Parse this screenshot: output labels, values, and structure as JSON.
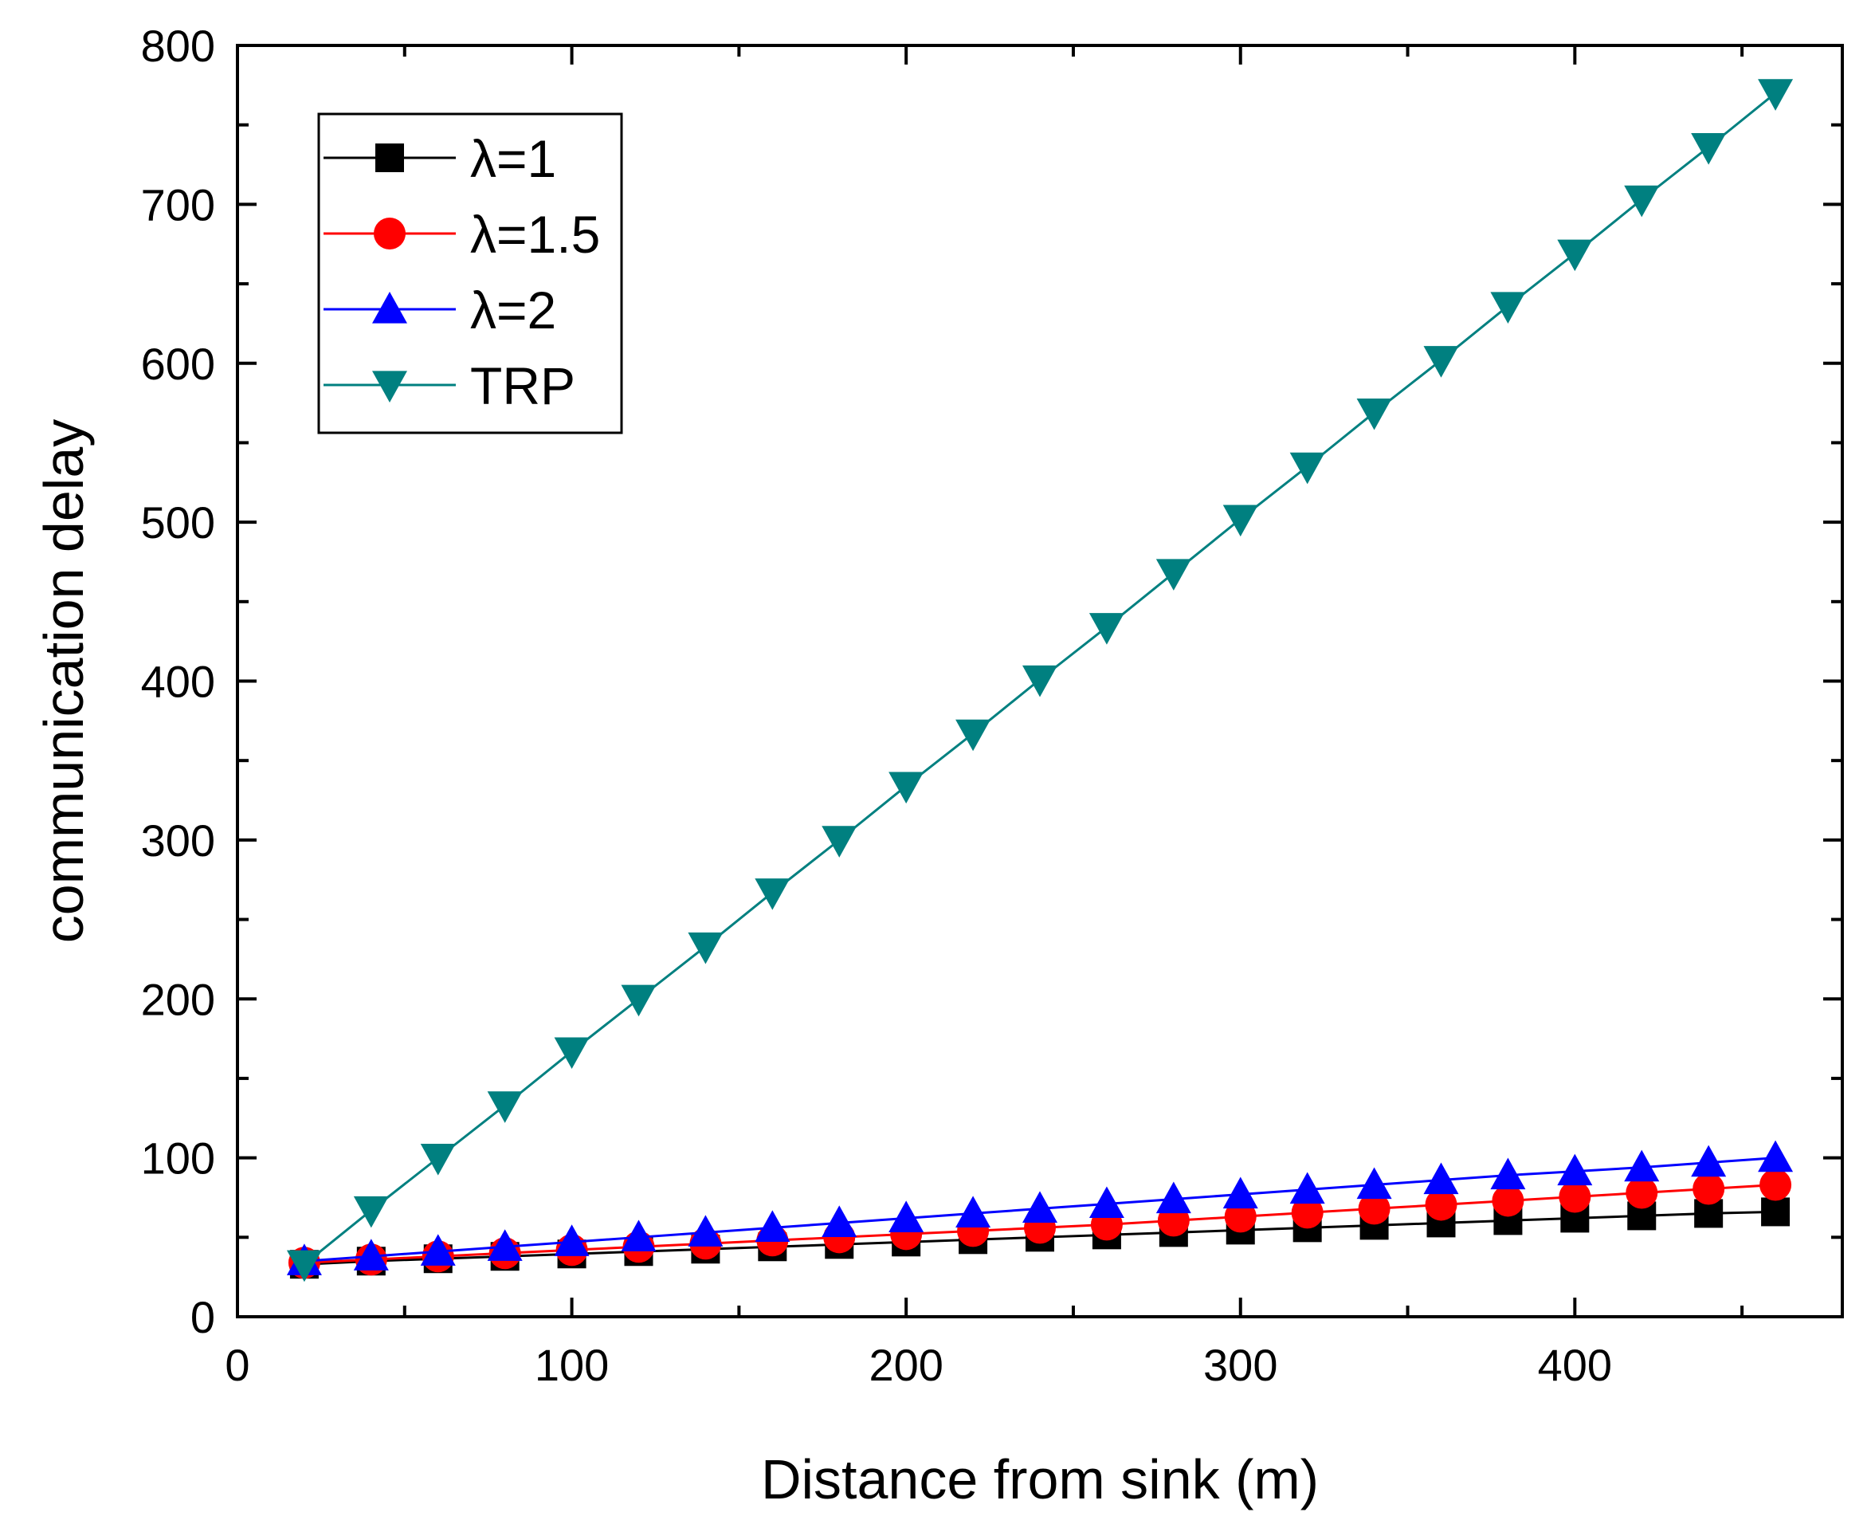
{
  "chart_data": {
    "type": "line",
    "title": "",
    "xlabel": "Distance from sink (m)",
    "ylabel": "communication delay",
    "xlim": [
      0,
      480
    ],
    "ylim": [
      0,
      800
    ],
    "xticks": [
      0,
      100,
      200,
      300,
      400
    ],
    "yticks": [
      0,
      100,
      200,
      300,
      400,
      500,
      600,
      700,
      800
    ],
    "x": [
      20,
      40,
      60,
      80,
      100,
      120,
      140,
      160,
      180,
      200,
      220,
      240,
      260,
      280,
      300,
      320,
      340,
      360,
      380,
      400,
      420,
      440,
      460
    ],
    "legend_position": "top-left",
    "series": [
      {
        "name": "λ=1",
        "color": "#000000",
        "marker": "square",
        "values": [
          33,
          35,
          36.5,
          38,
          39.5,
          41,
          42.5,
          44,
          45.5,
          47,
          48.5,
          50,
          51.5,
          53,
          54.5,
          56,
          57.5,
          59,
          60.5,
          62,
          63.5,
          65,
          66
        ]
      },
      {
        "name": "λ=1.5",
        "color": "#ff0000",
        "marker": "circle",
        "values": [
          34,
          36,
          38,
          40,
          42,
          44,
          46,
          48,
          50,
          52,
          54,
          56,
          58,
          60.5,
          63,
          65.5,
          68,
          70.5,
          73,
          75.5,
          78,
          80.5,
          83
        ]
      },
      {
        "name": "λ=2",
        "color": "#0000ff",
        "marker": "triangle-up",
        "values": [
          35,
          38,
          41,
          44,
          47,
          50,
          53,
          56,
          59,
          62,
          65,
          68,
          71,
          74,
          77,
          80,
          83,
          86,
          89,
          91.5,
          94,
          97,
          100
        ]
      },
      {
        "name": "TRP",
        "color": "#008080",
        "marker": "triangle-down",
        "values": [
          33,
          67,
          100,
          133,
          167,
          200,
          233,
          267,
          300,
          334,
          367,
          401,
          434,
          468,
          502,
          535,
          569,
          602,
          636,
          669,
          703,
          736,
          770
        ]
      }
    ]
  }
}
